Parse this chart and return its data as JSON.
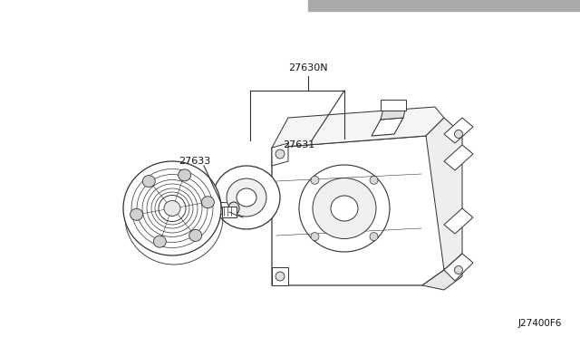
{
  "bg_color": "#ffffff",
  "header_bar_color": "#aaaaaa",
  "line_color": "#333333",
  "text_color": "#111111",
  "label_27630N": "27630N",
  "label_27633": "27633",
  "label_27631": "27631",
  "ref_code": "J27400F6",
  "fig_w": 6.4,
  "fig_h": 3.72,
  "dpi": 100
}
